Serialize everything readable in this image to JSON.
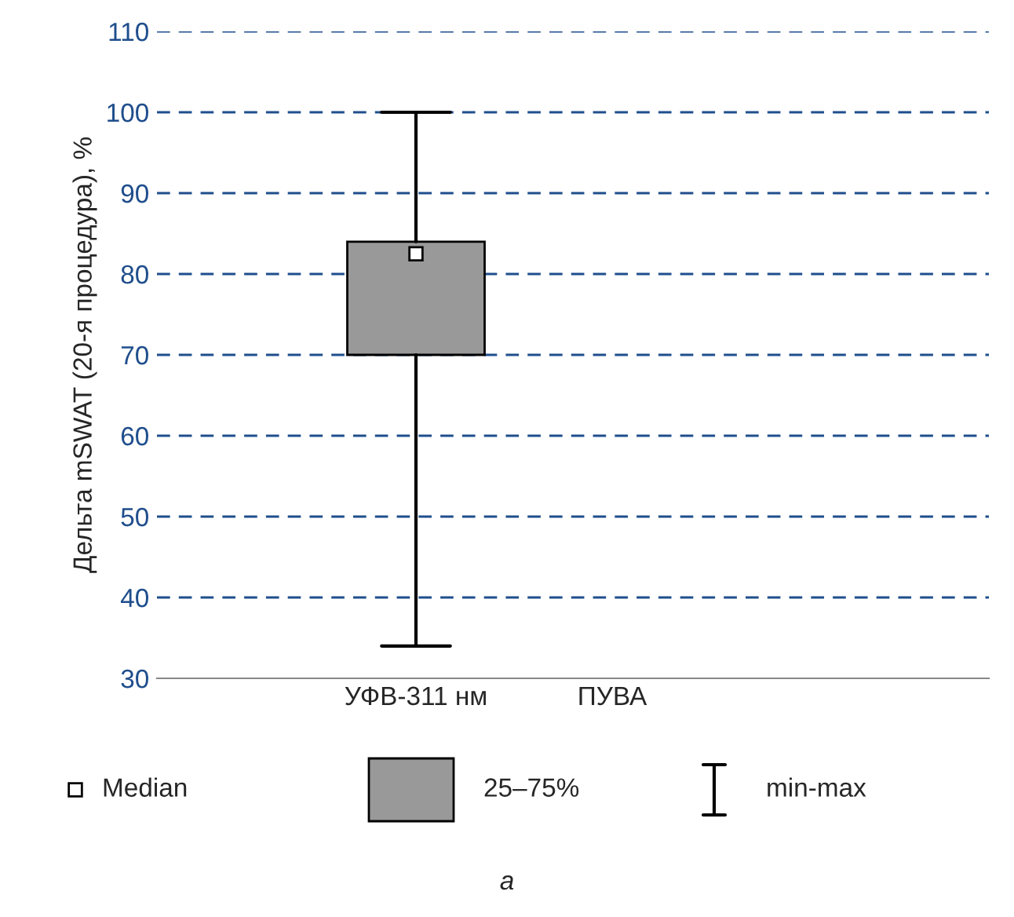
{
  "chart_data": {
    "type": "box",
    "ylabel": "Дельта mSWAT (20-я процедура), %",
    "categories": [
      "УФВ-311 нм",
      "ПУВА"
    ],
    "boxes": [
      {
        "low": 34,
        "q1": 70,
        "median": 82.5,
        "q3": 84,
        "high": 100
      },
      null
    ],
    "color": "#999999",
    "ylim": [
      30,
      110
    ],
    "yticks": [
      30,
      40,
      50,
      60,
      70,
      80,
      90,
      100,
      110
    ],
    "grid": "y",
    "annotations": [
      "Median",
      "25–75%",
      "min-max",
      "а"
    ]
  }
}
